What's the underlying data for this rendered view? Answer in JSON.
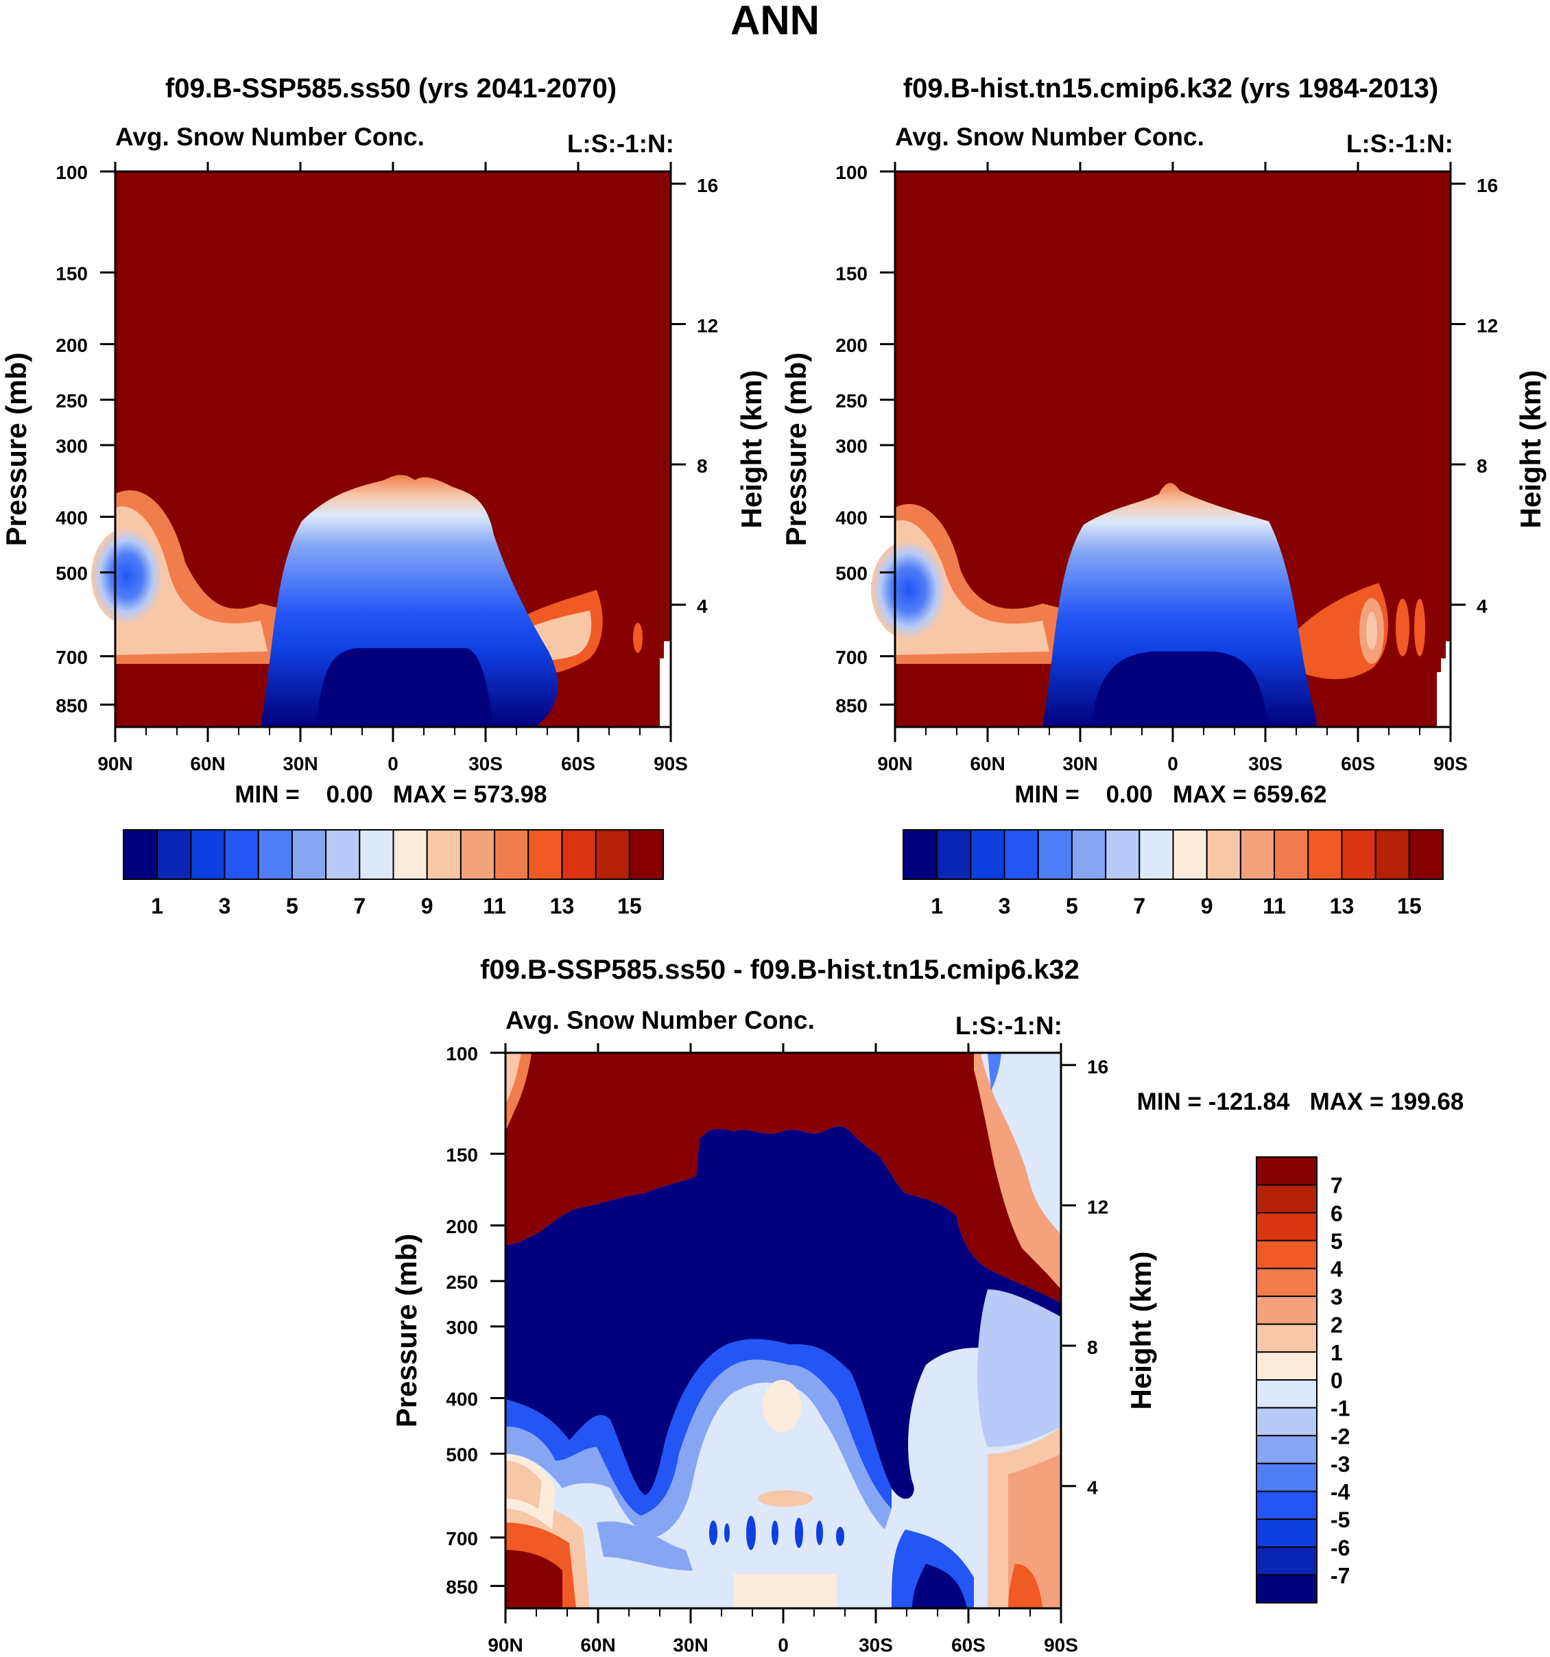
{
  "figure_title": "ANN",
  "colors": {
    "seq_palette": [
      "#00007f",
      "#0a25b3",
      "#0e3fe0",
      "#2455f5",
      "#4f7ef7",
      "#86a6f4",
      "#b8cbf6",
      "#dde8fa",
      "#fdecdc",
      "#f8c7a8",
      "#f4a27b",
      "#f27d4c",
      "#f05a25",
      "#db3410",
      "#b52107",
      "#870000"
    ],
    "diff_palette": [
      "#00007f",
      "#0a25b3",
      "#0e3fe0",
      "#2455f5",
      "#4f7ef7",
      "#86a6f4",
      "#b8cbf6",
      "#dde8fa",
      "#fdecdc",
      "#f8c7a8",
      "#f4a27b",
      "#f27d4c",
      "#f05a25",
      "#db3410",
      "#b52107",
      "#870000"
    ]
  },
  "chart_data": [
    {
      "type": "contour",
      "title": "f09.B-SSP585.ss50 (yrs 2041-2070)",
      "subtitle_left": "Avg. Snow Number Conc.",
      "subtitle_right": "L:S:-1:N:",
      "ylabel": "Pressure (mb)",
      "ylabel_right": "Height (km)",
      "x_ticks": [
        "90N",
        "60N",
        "30N",
        "0",
        "30S",
        "60S",
        "90S"
      ],
      "x_values": [
        90,
        60,
        30,
        0,
        -30,
        -60,
        -90
      ],
      "y_ticks": [
        100,
        150,
        200,
        250,
        300,
        400,
        500,
        700,
        850
      ],
      "y_range": [
        100,
        1000
      ],
      "y_right_ticks": [
        16,
        12,
        8,
        4
      ],
      "min_max": "MIN =    0.00   MAX = 573.98",
      "colorbar_labels": [
        "1",
        "3",
        "5",
        "7",
        "9",
        "11",
        "13",
        "15"
      ],
      "summary": {
        "min": 0.0,
        "max": 573.98
      }
    },
    {
      "type": "contour",
      "title": "f09.B-hist.tn15.cmip6.k32 (yrs 1984-2013)",
      "subtitle_left": "Avg. Snow Number Conc.",
      "subtitle_right": "L:S:-1:N:",
      "ylabel": "Pressure (mb)",
      "ylabel_right": "Height (km)",
      "x_ticks": [
        "90N",
        "60N",
        "30N",
        "0",
        "30S",
        "60S",
        "90S"
      ],
      "x_values": [
        90,
        60,
        30,
        0,
        -30,
        -60,
        -90
      ],
      "y_ticks": [
        100,
        150,
        200,
        250,
        300,
        400,
        500,
        700,
        850
      ],
      "y_range": [
        100,
        1000
      ],
      "y_right_ticks": [
        16,
        12,
        8,
        4
      ],
      "min_max": "MIN =    0.00   MAX = 659.62",
      "colorbar_labels": [
        "1",
        "3",
        "5",
        "7",
        "9",
        "11",
        "13",
        "15"
      ],
      "summary": {
        "min": 0.0,
        "max": 659.62
      }
    },
    {
      "type": "contour",
      "title": "f09.B-SSP585.ss50 - f09.B-hist.tn15.cmip6.k32",
      "subtitle_left": "Avg. Snow Number Conc.",
      "subtitle_right": "L:S:-1:N:",
      "ylabel": "Pressure (mb)",
      "ylabel_right": "Height (km)",
      "x_ticks": [
        "90N",
        "60N",
        "30N",
        "0",
        "30S",
        "60S",
        "90S"
      ],
      "x_values": [
        90,
        60,
        30,
        0,
        -30,
        -60,
        -90
      ],
      "y_ticks": [
        100,
        150,
        200,
        250,
        300,
        400,
        500,
        700,
        850
      ],
      "y_range": [
        100,
        1000
      ],
      "y_right_ticks": [
        16,
        12,
        8,
        4
      ],
      "min_max": "MIN = -121.84   MAX = 199.68",
      "colorbar_labels": [
        "7",
        "6",
        "5",
        "4",
        "3",
        "2",
        "1",
        "0",
        "-1",
        "-2",
        "-3",
        "-4",
        "-5",
        "-6",
        "-7"
      ],
      "summary": {
        "min": -121.84,
        "max": 199.68
      }
    }
  ]
}
